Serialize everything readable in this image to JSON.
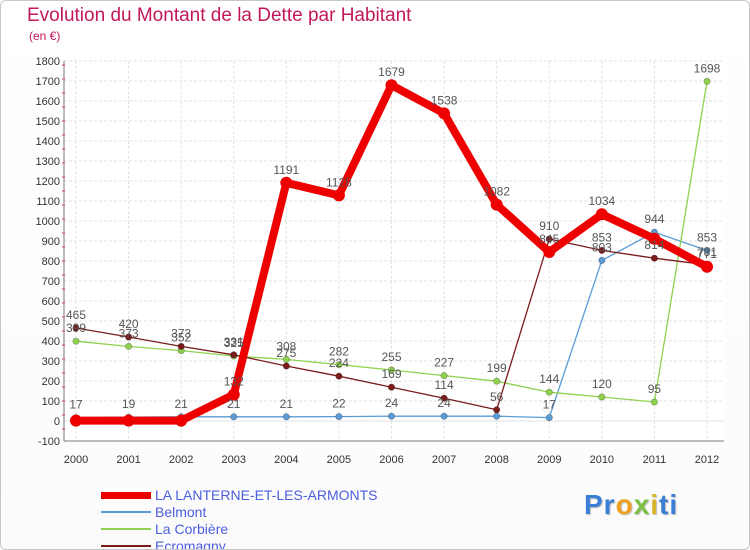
{
  "title": "Evolution du Montant de la Dette par Habitant",
  "unit": "(en €)",
  "logo": {
    "parts": [
      {
        "text": "Pr",
        "color": "#3a7fd5"
      },
      {
        "text": "o",
        "color": "#f0a020"
      },
      {
        "text": "x",
        "color": "#7bc043"
      },
      {
        "text": "i",
        "color": "#d8b82a"
      },
      {
        "text": "ti",
        "color": "#3a7fd5"
      }
    ]
  },
  "chart_data": {
    "type": "line",
    "x": [
      "2000",
      "2001",
      "2002",
      "2003",
      "2004",
      "2005",
      "2006",
      "2007",
      "2008",
      "2009",
      "2010",
      "2011",
      "2012"
    ],
    "ylim": [
      -100,
      1800
    ],
    "yticks": [
      -100,
      0,
      100,
      200,
      300,
      400,
      500,
      600,
      700,
      800,
      900,
      1000,
      1100,
      1200,
      1300,
      1400,
      1500,
      1600,
      1700,
      1800
    ],
    "grid": true,
    "legend": "bottom-left",
    "series": [
      {
        "name": "LA LANTERNE-ET-LES-ARMONTS",
        "color": "#ee0000",
        "values": [
          2,
          2,
          2,
          132,
          1191,
          1128,
          1679,
          1538,
          1082,
          845,
          1034,
          911,
          771
        ],
        "labels": [
          "",
          "",
          "",
          "132",
          "1191",
          "1128",
          "1679",
          "1538",
          "1082",
          "845",
          "1034",
          "",
          "771"
        ]
      },
      {
        "name": "Belmont",
        "color": "#5b9bd5",
        "values": [
          17,
          19,
          21,
          21,
          21,
          22,
          24,
          24,
          24,
          17,
          803,
          944,
          853
        ],
        "labels": [
          "17",
          "19",
          "21",
          "21",
          "21",
          "22",
          "24",
          "24",
          "",
          "17",
          "803",
          "944",
          "853"
        ]
      },
      {
        "name": "La Corbière",
        "color": "#8fd14f",
        "values": [
          399,
          373,
          352,
          325,
          308,
          282,
          255,
          227,
          199,
          144,
          120,
          95,
          1698
        ],
        "labels": [
          "399",
          "373",
          "352",
          "325",
          "308",
          "282",
          "255",
          "227",
          "199",
          "144",
          "120",
          "95",
          "1698"
        ]
      },
      {
        "name": "Ecromagny",
        "color": "#7a1c1c",
        "values": [
          465,
          420,
          373,
          331,
          275,
          224,
          169,
          114,
          56,
          910,
          853,
          814,
          781
        ],
        "labels": [
          "465",
          "420",
          "373",
          "331",
          "275",
          "224",
          "169",
          "114",
          "56",
          "910",
          "853",
          "814",
          "781"
        ]
      }
    ]
  }
}
